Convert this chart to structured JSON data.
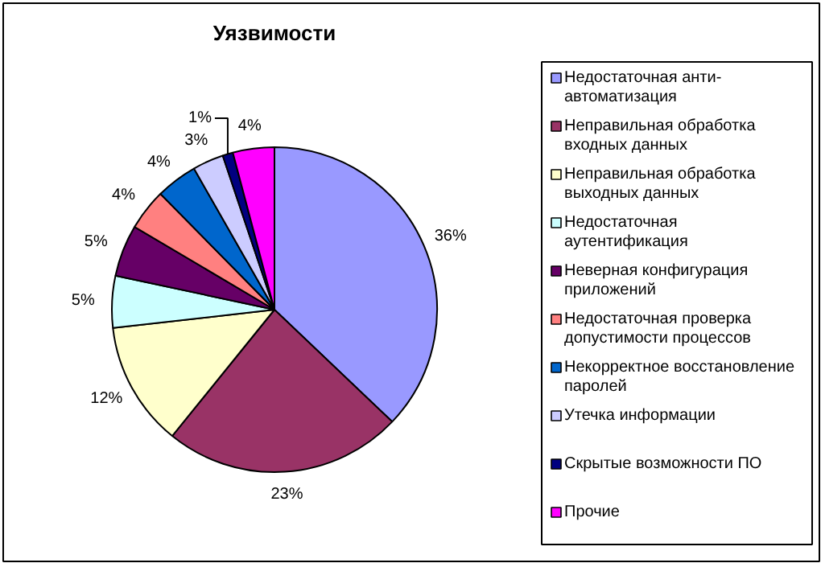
{
  "chart_data": {
    "type": "pie",
    "title": "Уязвимости",
    "categories": [
      "Недостаточная анти-автоматизация",
      "Неправильная обработка входных данных",
      "Неправильная обработка выходных данных",
      "Недостаточная аутентификация",
      "Неверная конфигурация приложений",
      "Недостаточная проверка допустимости процессов",
      "Некорректное восстановление паролей",
      "Утечка информации",
      "Скрытые возможности ПО",
      "Прочие"
    ],
    "values": [
      36,
      23,
      12,
      5,
      5,
      4,
      4,
      3,
      1,
      4
    ],
    "colors": [
      "#9999ff",
      "#993366",
      "#ffffcc",
      "#ccffff",
      "#660066",
      "#ff8080",
      "#0066cc",
      "#ccccff",
      "#000080",
      "#ff00ff"
    ],
    "value_labels": [
      "36%",
      "23%",
      "12%",
      "5%",
      "5%",
      "4%",
      "4%",
      "3%",
      "1%",
      "4%"
    ],
    "legend": "right"
  }
}
